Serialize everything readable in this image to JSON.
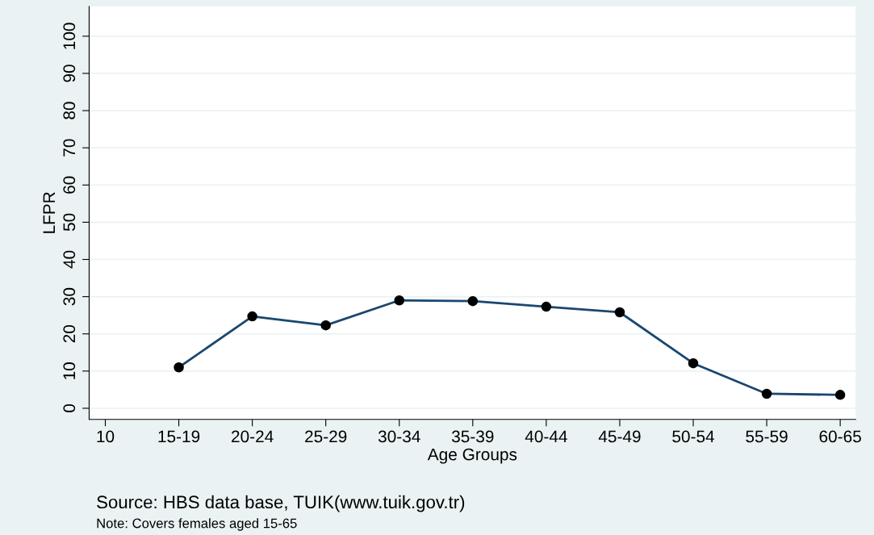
{
  "chart_data": {
    "type": "line",
    "xlabel": "Age Groups",
    "ylabel": "LFPR",
    "categories": [
      "10",
      "15-19",
      "20-24",
      "25-29",
      "30-34",
      "35-39",
      "40-44",
      "45-49",
      "50-54",
      "55-59",
      "60-65"
    ],
    "series": [
      {
        "color": "#1a476f",
        "values": [
          null,
          11.0,
          24.7,
          22.3,
          29.0,
          28.8,
          27.3,
          25.8,
          12.1,
          3.9,
          3.6
        ]
      }
    ],
    "ylim": [
      -3,
      108
    ],
    "yticks": [
      0,
      10,
      20,
      30,
      40,
      50,
      60,
      70,
      80,
      90,
      100
    ],
    "grid": "y",
    "marker": "circle",
    "line_style": "solid",
    "legend": false,
    "annotations": [
      "Source: HBS data base, TUIK(www.tuik.gov.tr)",
      "Note: Covers females aged 15-65"
    ]
  }
}
